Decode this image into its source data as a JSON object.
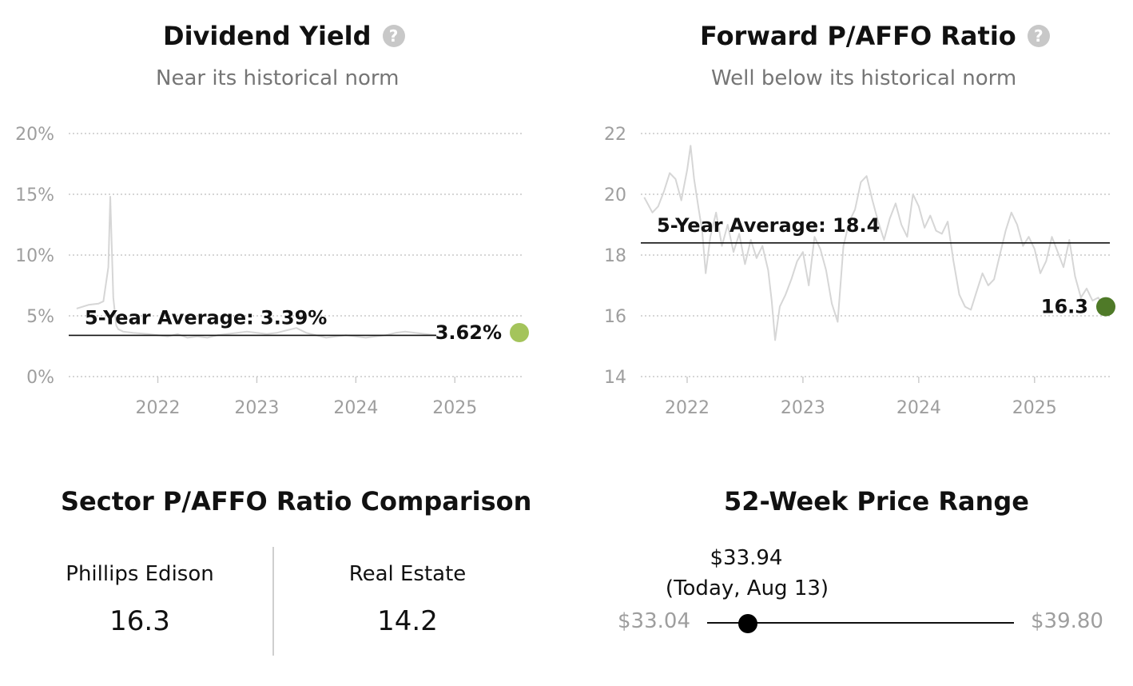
{
  "dividend_yield": {
    "title": "Dividend Yield",
    "subtitle": "Near its historical norm",
    "help_icon": "question-circle-icon",
    "average_label": "5-Year Average: 3.39%",
    "current_label": "3.62%",
    "current_color": "#a4c45b"
  },
  "pafo_ratio": {
    "title": "Forward P/AFFO Ratio",
    "subtitle": "Well below its historical norm",
    "help_icon": "question-circle-icon",
    "average_label": "5-Year Average: 18.4",
    "current_label": "16.3",
    "current_color": "#4f7a28"
  },
  "chart_data": [
    {
      "type": "line",
      "title": "Dividend Yield",
      "ylim": [
        0,
        20
      ],
      "y_ticks": [
        "0%",
        "5%",
        "10%",
        "15%",
        "20%"
      ],
      "x_ticks": [
        "2022",
        "2023",
        "2024",
        "2025"
      ],
      "xlim": [
        2021.1,
        2025.7
      ],
      "average": 3.39,
      "current": 3.62,
      "series": [
        {
          "x": [
            2021.18,
            2021.3,
            2021.4,
            2021.45,
            2021.5,
            2021.52,
            2021.55,
            2021.58,
            2021.6,
            2021.65,
            2021.75,
            2021.9,
            2022.0,
            2022.1,
            2022.2,
            2022.3,
            2022.4,
            2022.5,
            2022.6,
            2022.7,
            2022.8,
            2022.9,
            2023.0,
            2023.1,
            2023.2,
            2023.3,
            2023.4,
            2023.5,
            2023.6,
            2023.7,
            2023.8,
            2023.9,
            2024.0,
            2024.1,
            2024.2,
            2024.3,
            2024.4,
            2024.5,
            2024.6,
            2024.7,
            2024.8
          ],
          "values": [
            5.6,
            5.9,
            6.0,
            6.2,
            9.0,
            14.8,
            6.5,
            4.2,
            3.9,
            3.7,
            3.6,
            3.5,
            3.4,
            3.3,
            3.5,
            3.2,
            3.3,
            3.2,
            3.4,
            3.5,
            3.6,
            3.7,
            3.6,
            3.5,
            3.6,
            3.8,
            4.0,
            3.6,
            3.4,
            3.2,
            3.3,
            3.4,
            3.3,
            3.2,
            3.3,
            3.4,
            3.6,
            3.7,
            3.6,
            3.5,
            3.4
          ]
        }
      ]
    },
    {
      "type": "line",
      "title": "Forward P/AFFO Ratio",
      "ylim": [
        14,
        22
      ],
      "y_ticks": [
        "14",
        "16",
        "18",
        "20",
        "22"
      ],
      "x_ticks": [
        "2022",
        "2023",
        "2024",
        "2025"
      ],
      "xlim": [
        2021.6,
        2025.65
      ],
      "average": 18.4,
      "current": 16.3,
      "series": [
        {
          "x": [
            2021.63,
            2021.7,
            2021.75,
            2021.8,
            2021.85,
            2021.9,
            2021.95,
            2022.0,
            2022.03,
            2022.06,
            2022.1,
            2022.13,
            2022.16,
            2022.2,
            2022.25,
            2022.3,
            2022.35,
            2022.4,
            2022.45,
            2022.5,
            2022.55,
            2022.6,
            2022.65,
            2022.7,
            2022.73,
            2022.76,
            2022.8,
            2022.85,
            2022.9,
            2022.95,
            2023.0,
            2023.05,
            2023.1,
            2023.15,
            2023.2,
            2023.25,
            2023.3,
            2023.35,
            2023.4,
            2023.45,
            2023.5,
            2023.55,
            2023.6,
            2023.65,
            2023.7,
            2023.75,
            2023.8,
            2023.85,
            2023.9,
            2023.95,
            2024.0,
            2024.05,
            2024.1,
            2024.15,
            2024.2,
            2024.25,
            2024.3,
            2024.35,
            2024.4,
            2024.45,
            2024.5,
            2024.55,
            2024.6,
            2024.65,
            2024.7,
            2024.75,
            2024.8,
            2024.85,
            2024.9,
            2024.95,
            2025.0,
            2025.05,
            2025.1,
            2025.15,
            2025.2,
            2025.25,
            2025.3,
            2025.35,
            2025.4,
            2025.45,
            2025.5,
            2025.55,
            2025.6
          ],
          "values": [
            19.9,
            19.4,
            19.6,
            20.1,
            20.7,
            20.5,
            19.8,
            20.8,
            21.6,
            20.5,
            19.5,
            18.8,
            17.4,
            18.6,
            19.4,
            18.3,
            19.0,
            18.1,
            18.7,
            17.7,
            18.5,
            17.9,
            18.3,
            17.5,
            16.5,
            15.2,
            16.3,
            16.7,
            17.2,
            17.8,
            18.1,
            17.0,
            18.6,
            18.2,
            17.5,
            16.4,
            15.8,
            18.3,
            19.1,
            19.5,
            20.4,
            20.6,
            19.8,
            19.1,
            18.5,
            19.2,
            19.7,
            19.0,
            18.6,
            20.0,
            19.6,
            18.9,
            19.3,
            18.8,
            18.7,
            19.1,
            17.8,
            16.7,
            16.3,
            16.2,
            16.8,
            17.4,
            17.0,
            17.2,
            18.0,
            18.8,
            19.4,
            19.0,
            18.3,
            18.6,
            18.2,
            17.4,
            17.8,
            18.6,
            18.1,
            17.6,
            18.5,
            17.3,
            16.6,
            16.9,
            16.5,
            16.6,
            16.3
          ]
        }
      ]
    }
  ],
  "sector": {
    "title": "Sector P/AFFO Ratio Comparison",
    "items": [
      {
        "name": "Phillips Edison",
        "value": "16.3"
      },
      {
        "name": "Real Estate",
        "value": "14.2"
      }
    ]
  },
  "price_range": {
    "title": "52-Week Price Range",
    "low": "$33.04",
    "high": "$39.80",
    "current_price": "$33.94",
    "current_note": "(Today, Aug 13)",
    "low_value": 33.04,
    "high_value": 39.8,
    "current_value": 33.94
  }
}
